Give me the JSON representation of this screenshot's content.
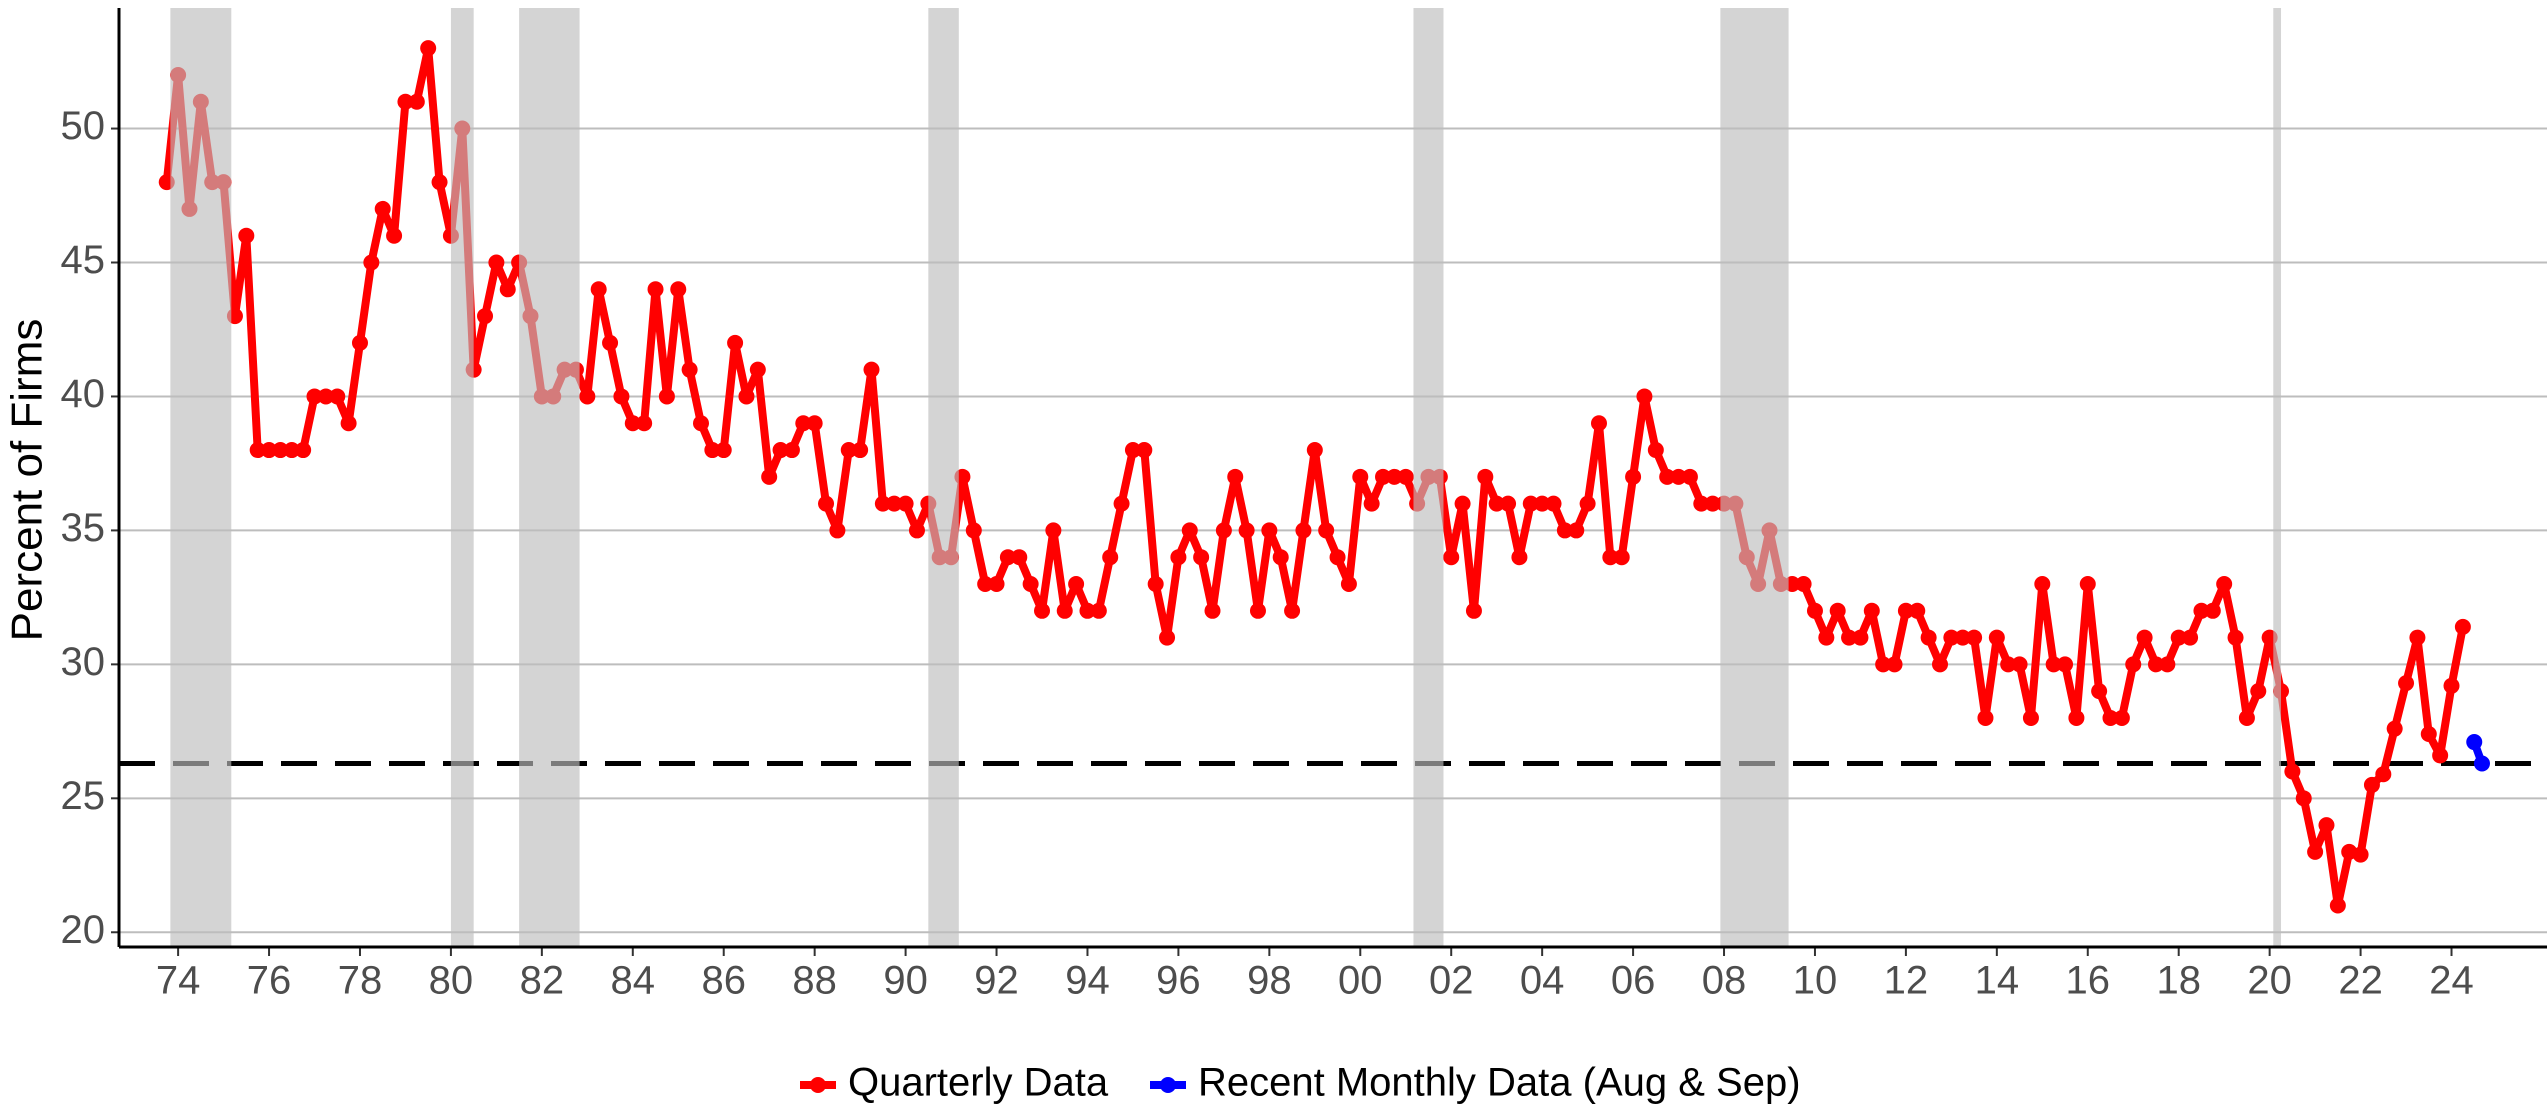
{
  "chart_data": {
    "type": "line",
    "y_label": "Percent of Firms",
    "series": [
      {
        "name": "Quarterly Data",
        "color": "#ff0000",
        "x": [
          1973.75,
          1974,
          1974.25,
          1974.5,
          1974.75,
          1975,
          1975.25,
          1975.5,
          1975.75,
          1976,
          1976.25,
          1976.5,
          1976.75,
          1977,
          1977.25,
          1977.5,
          1977.75,
          1978,
          1978.25,
          1978.5,
          1978.75,
          1979,
          1979.25,
          1979.5,
          1979.75,
          1980,
          1980.25,
          1980.5,
          1980.75,
          1981,
          1981.25,
          1981.5,
          1981.75,
          1982,
          1982.25,
          1982.5,
          1982.75,
          1983,
          1983.25,
          1983.5,
          1983.75,
          1984,
          1984.25,
          1984.5,
          1984.75,
          1985,
          1985.25,
          1985.5,
          1985.75,
          1986,
          1986.25,
          1986.5,
          1986.75,
          1987,
          1987.25,
          1987.5,
          1987.75,
          1988,
          1988.25,
          1988.5,
          1988.75,
          1989,
          1989.25,
          1989.5,
          1989.75,
          1990,
          1990.25,
          1990.5,
          1990.75,
          1991,
          1991.25,
          1991.5,
          1991.75,
          1992,
          1992.25,
          1992.5,
          1992.75,
          1993,
          1993.25,
          1993.5,
          1993.75,
          1994,
          1994.25,
          1994.5,
          1994.75,
          1995,
          1995.25,
          1995.5,
          1995.75,
          1996,
          1996.25,
          1996.5,
          1996.75,
          1997,
          1997.25,
          1997.5,
          1997.75,
          1998,
          1998.25,
          1998.5,
          1998.75,
          1999,
          1999.25,
          1999.5,
          1999.75,
          2000,
          2000.25,
          2000.5,
          2000.75,
          2001,
          2001.25,
          2001.5,
          2001.75,
          2002,
          2002.25,
          2002.5,
          2002.75,
          2003,
          2003.25,
          2003.5,
          2003.75,
          2004,
          2004.25,
          2004.5,
          2004.75,
          2005,
          2005.25,
          2005.5,
          2005.75,
          2006,
          2006.25,
          2006.5,
          2006.75,
          2007,
          2007.25,
          2007.5,
          2007.75,
          2008,
          2008.25,
          2008.5,
          2008.75,
          2009,
          2009.25,
          2009.5,
          2009.75,
          2010,
          2010.25,
          2010.5,
          2010.75,
          2011,
          2011.25,
          2011.5,
          2011.75,
          2012,
          2012.25,
          2012.5,
          2012.75,
          2013,
          2013.25,
          2013.5,
          2013.75,
          2014,
          2014.25,
          2014.5,
          2014.75,
          2015,
          2015.25,
          2015.5,
          2015.75,
          2016,
          2016.25,
          2016.5,
          2016.75,
          2017,
          2017.25,
          2017.5,
          2017.75,
          2018,
          2018.25,
          2018.5,
          2018.75,
          2019,
          2019.25,
          2019.5,
          2019.75,
          2020,
          2020.25,
          2020.5,
          2020.75,
          2021,
          2021.25,
          2021.5,
          2021.75,
          2022,
          2022.25,
          2022.5,
          2022.75,
          2023,
          2023.25,
          2023.5,
          2023.75,
          2024,
          2024.25
        ],
        "values": [
          48,
          52,
          47,
          51,
          48,
          48,
          43,
          46,
          38,
          38,
          38,
          38,
          38,
          40,
          40,
          40,
          39,
          42,
          45,
          47,
          46,
          51,
          51,
          53,
          48,
          46,
          50,
          41,
          43,
          45,
          44,
          45,
          43,
          40,
          40,
          41,
          41,
          40,
          44,
          42,
          40,
          39,
          39,
          44,
          40,
          44,
          41,
          39,
          38,
          38,
          42,
          40,
          41,
          37,
          38,
          38,
          39,
          39,
          36,
          35,
          38,
          38,
          41,
          36,
          36,
          36,
          35,
          36,
          34,
          34,
          37,
          35,
          33,
          33,
          34,
          34,
          33,
          32,
          35,
          32,
          33,
          32,
          32,
          34,
          36,
          38,
          38,
          33,
          31,
          34,
          35,
          34,
          32,
          35,
          37,
          35,
          32,
          35,
          34,
          32,
          35,
          38,
          35,
          34,
          33,
          37,
          36,
          37,
          37,
          37,
          36,
          37,
          37,
          34,
          36,
          32,
          37,
          36,
          36,
          34,
          36,
          36,
          36,
          35,
          35,
          36,
          39,
          34,
          34,
          37,
          40,
          38,
          37,
          37,
          37,
          36,
          36,
          36,
          36,
          34,
          33,
          35,
          33,
          33,
          33,
          32,
          31,
          32,
          31,
          31,
          32,
          30,
          30,
          32,
          32,
          31,
          30,
          31,
          31,
          31,
          28,
          31,
          30,
          30,
          28,
          33,
          30,
          30,
          28,
          33,
          29,
          28,
          28,
          30,
          31,
          30,
          30,
          31,
          31,
          32,
          32,
          33,
          31,
          28,
          29,
          31,
          29,
          26,
          25,
          23,
          24,
          21,
          23,
          22.9,
          25.5,
          25.9,
          27.6,
          29.3,
          31,
          27.4,
          26.6,
          29.2,
          31.4
        ]
      },
      {
        "name": "Recent Monthly Data (Aug & Sep)",
        "color": "#0000ff",
        "x": [
          2024.5,
          2024.67
        ],
        "values": [
          27.1,
          26.3
        ]
      }
    ],
    "reference_line": 26.3,
    "recessions": [
      [
        1973.83,
        1975.17
      ],
      [
        1980.0,
        1980.5
      ],
      [
        1981.5,
        1982.83
      ],
      [
        1990.5,
        1991.17
      ],
      [
        2001.17,
        2001.83
      ],
      [
        2007.92,
        2009.42
      ],
      [
        2020.08,
        2020.25
      ]
    ],
    "xlim": [
      1972.7,
      2026.1
    ],
    "ylim": [
      19.45,
      54.5
    ],
    "xticks": [
      {
        "value": 1974,
        "label": "74"
      },
      {
        "value": 1976,
        "label": "76"
      },
      {
        "value": 1978,
        "label": "78"
      },
      {
        "value": 1980,
        "label": "80"
      },
      {
        "value": 1982,
        "label": "82"
      },
      {
        "value": 1984,
        "label": "84"
      },
      {
        "value": 1986,
        "label": "86"
      },
      {
        "value": 1988,
        "label": "88"
      },
      {
        "value": 1990,
        "label": "90"
      },
      {
        "value": 1992,
        "label": "92"
      },
      {
        "value": 1994,
        "label": "94"
      },
      {
        "value": 1996,
        "label": "96"
      },
      {
        "value": 1998,
        "label": "98"
      },
      {
        "value": 2000,
        "label": "00"
      },
      {
        "value": 2002,
        "label": "02"
      },
      {
        "value": 2004,
        "label": "04"
      },
      {
        "value": 2006,
        "label": "06"
      },
      {
        "value": 2008,
        "label": "08"
      },
      {
        "value": 2010,
        "label": "10"
      },
      {
        "value": 2012,
        "label": "12"
      },
      {
        "value": 2014,
        "label": "14"
      },
      {
        "value": 2016,
        "label": "16"
      },
      {
        "value": 2018,
        "label": "18"
      },
      {
        "value": 2020,
        "label": "20"
      },
      {
        "value": 2022,
        "label": "22"
      },
      {
        "value": 2024,
        "label": "24"
      }
    ],
    "yticks": [
      20,
      25,
      30,
      35,
      40,
      45,
      50
    ],
    "grid": true,
    "legend": "bottom"
  }
}
